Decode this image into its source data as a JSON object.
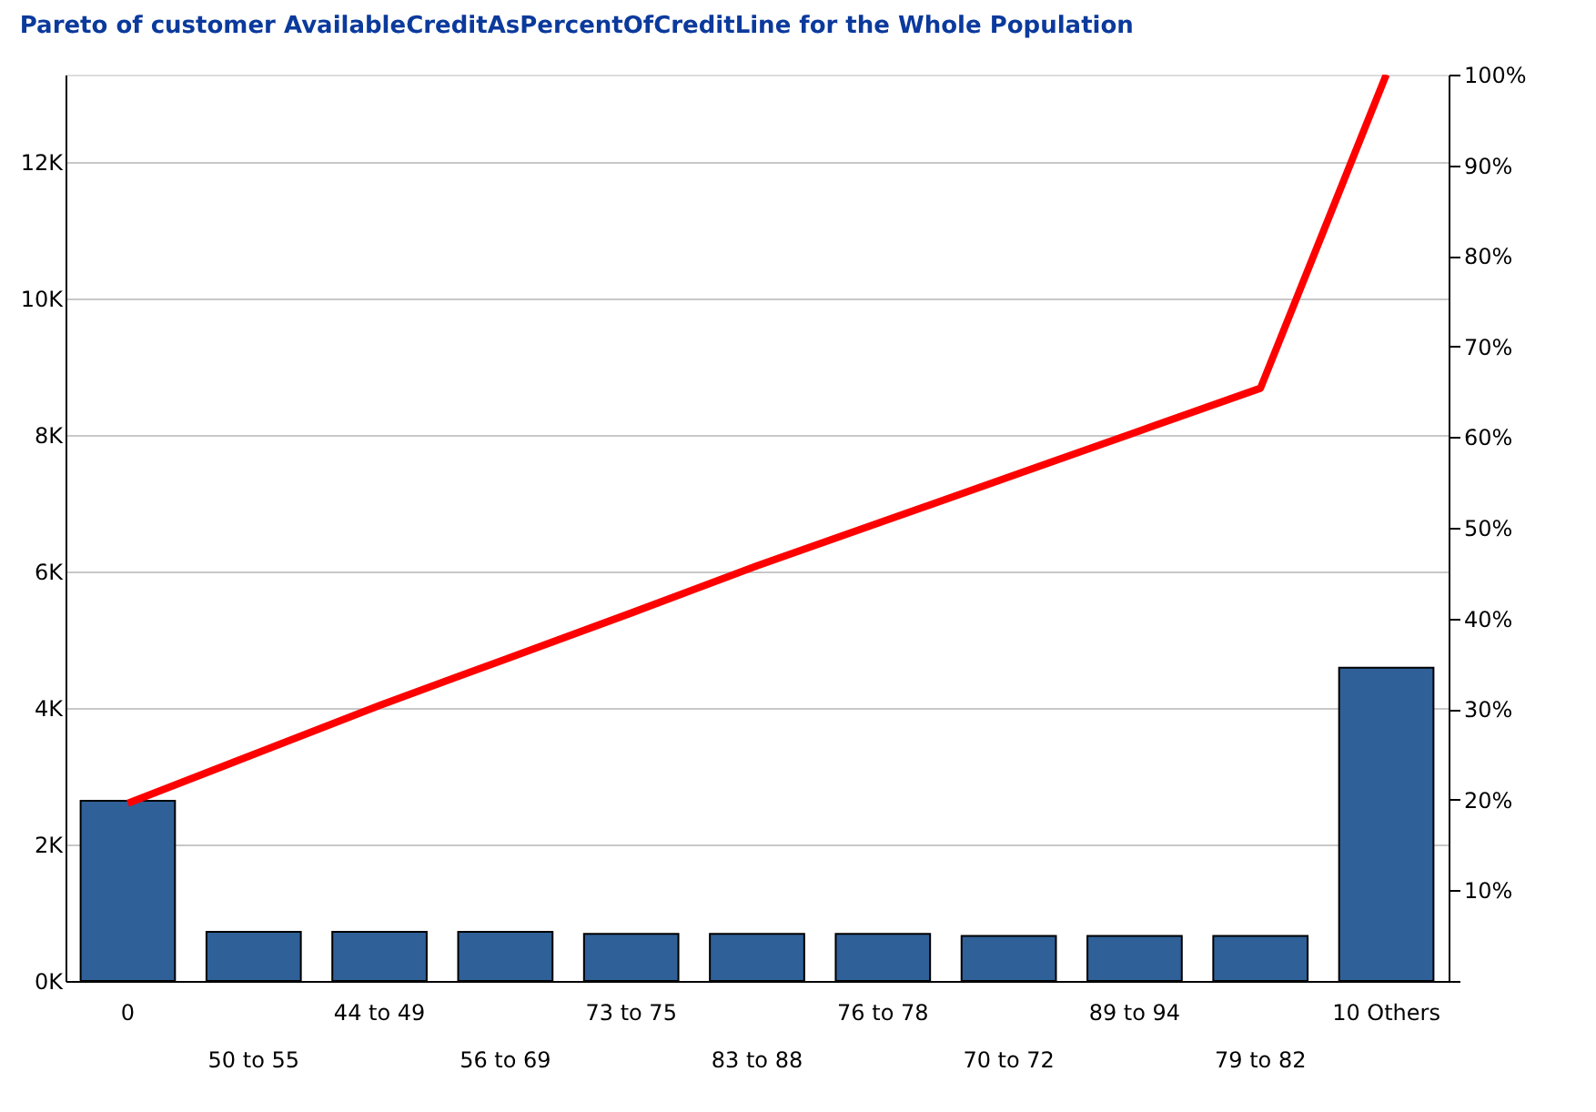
{
  "chart_data": {
    "type": "bar",
    "title": "Pareto of customer AvailableCreditAsPercentOfCreditLine for the Whole Population",
    "categories": [
      "0",
      "50 to 55",
      "44 to 49",
      "56 to 69",
      "73 to 75",
      "83 to 88",
      "76 to 78",
      "70 to 72",
      "89 to 94",
      "79 to 82",
      "10 Others"
    ],
    "series": [
      {
        "color": "#2f6098",
        "values": [
          2640,
          720,
          720,
          720,
          690,
          690,
          690,
          660,
          660,
          660,
          4590
        ]
      },
      {
        "type": "line",
        "axis": "y2",
        "color": "#ff0000",
        "values": [
          19.6,
          25.0,
          30.4,
          35.5,
          40.6,
          45.8,
          50.7,
          55.6,
          60.5,
          65.4,
          100
        ]
      }
    ],
    "ylim": [
      0,
      13280
    ],
    "yticks": [
      {
        "value": 0,
        "label": "0K"
      },
      {
        "value": 2000,
        "label": "2K"
      },
      {
        "value": 4000,
        "label": "4K"
      },
      {
        "value": 6000,
        "label": "6K"
      },
      {
        "value": 8000,
        "label": "8K"
      },
      {
        "value": 10000,
        "label": "10K"
      },
      {
        "value": 12000,
        "label": "12K"
      }
    ],
    "y2lim": [
      0,
      100
    ],
    "y2ticks": [
      {
        "value": 0,
        "label": null
      },
      {
        "value": 10,
        "label": "10%"
      },
      {
        "value": 20,
        "label": "20%"
      },
      {
        "value": 30,
        "label": "30%"
      },
      {
        "value": 40,
        "label": "40%"
      },
      {
        "value": 50,
        "label": "50%"
      },
      {
        "value": 60,
        "label": "60%"
      },
      {
        "value": 70,
        "label": "70%"
      },
      {
        "value": 80,
        "label": "80%"
      },
      {
        "value": 90,
        "label": "90%"
      },
      {
        "value": 100,
        "label": "100%"
      }
    ],
    "grid": "y"
  }
}
